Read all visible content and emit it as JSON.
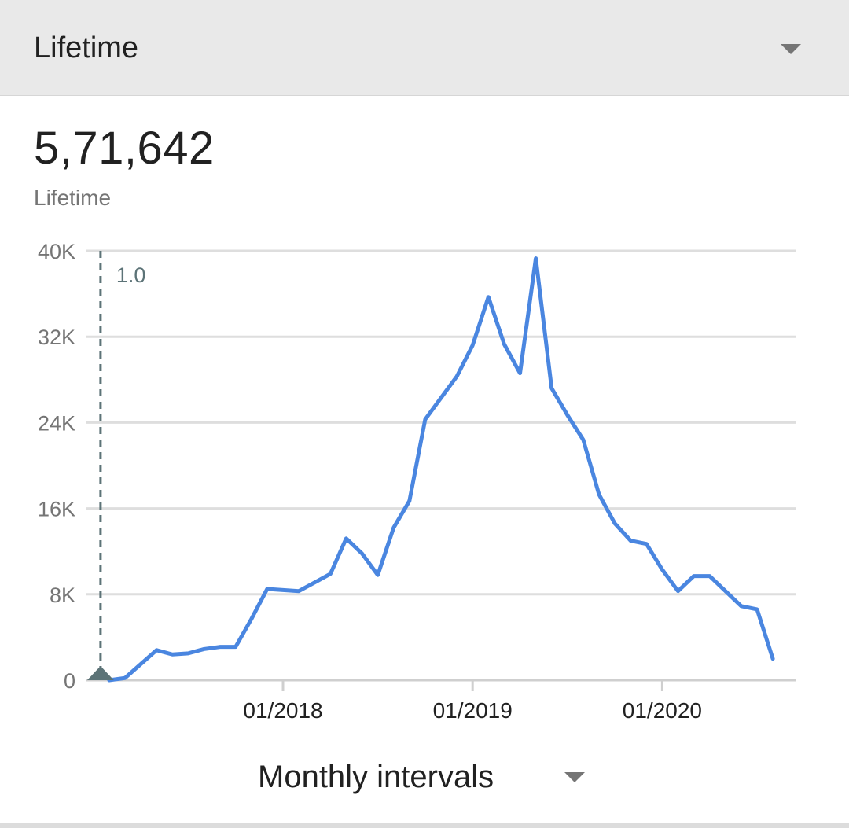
{
  "header": {
    "title": "Lifetime",
    "dropdown_icon": "caret-down-icon"
  },
  "summary": {
    "total": "5,71,642",
    "label": "Lifetime"
  },
  "chart_data": {
    "type": "line",
    "title": "",
    "xlabel": "",
    "ylabel": "",
    "y_ticks": [
      "0",
      "8K",
      "16K",
      "24K",
      "32K",
      "40K"
    ],
    "ylim": [
      0,
      40000
    ],
    "x_tick_labels": [
      "01/2018",
      "01/2019",
      "01/2020"
    ],
    "x_tick_values": [
      "2018-01",
      "2019-01",
      "2020-01"
    ],
    "xlim": [
      "2017-01",
      "2020-09"
    ],
    "grid": true,
    "line_color": "#4a86e0",
    "series": [
      {
        "x": [
          "2017-02",
          "2017-03",
          "2017-04",
          "2017-05",
          "2017-06",
          "2017-07",
          "2017-08",
          "2017-09",
          "2017-10",
          "2017-11",
          "2017-12",
          "2018-01",
          "2018-02",
          "2018-03",
          "2018-04",
          "2018-05",
          "2018-06",
          "2018-07",
          "2018-08",
          "2018-09",
          "2018-10",
          "2018-11",
          "2018-12",
          "2019-01",
          "2019-02",
          "2019-03",
          "2019-04",
          "2019-05",
          "2019-06",
          "2019-07",
          "2019-08",
          "2019-09",
          "2019-10",
          "2019-11",
          "2019-12",
          "2020-01",
          "2020-02",
          "2020-03",
          "2020-04",
          "2020-05",
          "2020-06",
          "2020-07",
          "2020-08"
        ],
        "values": [
          0,
          200,
          1500,
          2800,
          2400,
          2500,
          2900,
          3100,
          3100,
          5700,
          8500,
          8400,
          8300,
          9100,
          9900,
          13200,
          11800,
          9800,
          14200,
          16700,
          24300,
          26300,
          28300,
          31200,
          35700,
          31300,
          28600,
          39300,
          27200,
          24700,
          22400,
          17300,
          14600,
          13000,
          12700,
          10300,
          8300,
          9700,
          9700,
          8300,
          6900,
          6600,
          2000
        ]
      }
    ],
    "annotation": {
      "x": "2017-02",
      "label": "1.0",
      "color": "#5c7377"
    }
  },
  "interval": {
    "label": "Monthly intervals",
    "dropdown_icon": "caret-down-icon"
  }
}
